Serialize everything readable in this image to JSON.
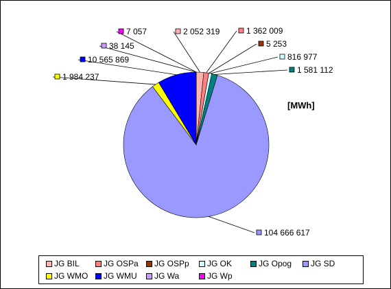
{
  "chart_data": {
    "type": "pie",
    "unit_label": "[MWh]",
    "slices": [
      {
        "name": "JG BIL",
        "value": 2052319,
        "label": "2 052 319",
        "color": "#ffb3b3"
      },
      {
        "name": "JG OSPa",
        "value": 1362009,
        "label": "1 362 009",
        "color": "#ff8080"
      },
      {
        "name": "JG OSPp",
        "value": 5253,
        "label": "5 253",
        "color": "#993300"
      },
      {
        "name": "JG OK",
        "value": 816977,
        "label": "816 977",
        "color": "#ccffff"
      },
      {
        "name": "JG Opog",
        "value": 1581112,
        "label": "1 581 112",
        "color": "#008080"
      },
      {
        "name": "JG SD",
        "value": 104666617,
        "label": "104 666 617",
        "color": "#9999ff"
      },
      {
        "name": "JG WMO",
        "value": 1984237,
        "label": "1 984 237",
        "color": "#ffff00"
      },
      {
        "name": "JG WMU",
        "value": 10565869,
        "label": "10 565 869",
        "color": "#0000ff"
      },
      {
        "name": "JG Wa",
        "value": 38145,
        "label": "38 145",
        "color": "#cc99ff"
      },
      {
        "name": "JG Wp",
        "value": 7057,
        "label": "7 057",
        "color": "#ff00ff"
      }
    ],
    "legend_position": "bottom"
  }
}
